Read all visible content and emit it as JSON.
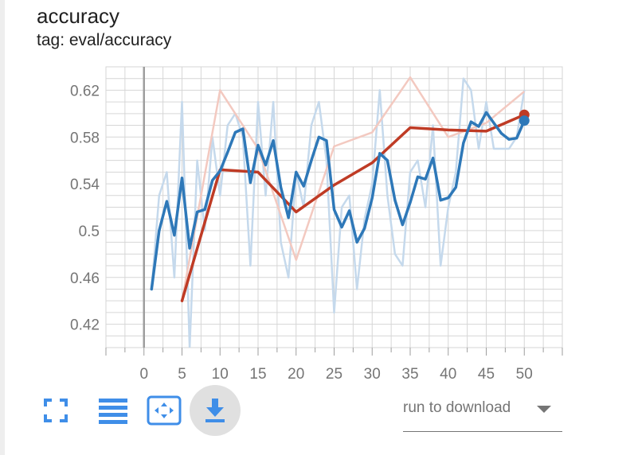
{
  "title": "accuracy",
  "subtitle": "tag: eval/accuracy",
  "toolbar": {
    "fit_icon": "fit-to-domain-icon",
    "log_icon": "toggle-y-log-icon",
    "data_icon": "toggle-selection-icon",
    "download_icon": "download-icon"
  },
  "dropdown": {
    "label": "run to download"
  },
  "colors": {
    "blue": "#2e78b8",
    "blue_light": "#c5d9ec",
    "red": "#bf3b25",
    "red_light": "#f3c9c0",
    "grid": "#d6d6d6",
    "axis": "#9e9e9e",
    "accent": "#3f8ee8"
  },
  "chart_data": {
    "type": "line",
    "title": "accuracy",
    "subtitle": "tag: eval/accuracy",
    "x_ticks": [
      0,
      5,
      10,
      15,
      20,
      25,
      30,
      35,
      40,
      45,
      50
    ],
    "y_ticks": [
      0.42,
      0.46,
      0.5,
      0.54,
      0.58,
      0.62
    ],
    "y_tick_labels": [
      "0.42",
      "0.46",
      "0.5",
      "0.54",
      "0.58",
      "0.62"
    ],
    "xlim": [
      -5,
      55
    ],
    "ylim": [
      0.4,
      0.64
    ],
    "grid": true,
    "series": [
      {
        "color": "#2e78b8",
        "raw_color": "#c5d9ec",
        "raw": [
          [
            1,
            0.45
          ],
          [
            2,
            0.53
          ],
          [
            3,
            0.55
          ],
          [
            4,
            0.46
          ],
          [
            5,
            0.61
          ],
          [
            6,
            0.4
          ],
          [
            7,
            0.56
          ],
          [
            8,
            0.5
          ],
          [
            9,
            0.58
          ],
          [
            10,
            0.53
          ],
          [
            11,
            0.59
          ],
          [
            12,
            0.6
          ],
          [
            13,
            0.58
          ],
          [
            14,
            0.47
          ],
          [
            15,
            0.61
          ],
          [
            16,
            0.53
          ],
          [
            17,
            0.61
          ],
          [
            18,
            0.49
          ],
          [
            19,
            0.46
          ],
          [
            20,
            0.55
          ],
          [
            21,
            0.52
          ],
          [
            22,
            0.59
          ],
          [
            23,
            0.61
          ],
          [
            24,
            0.56
          ],
          [
            25,
            0.43
          ],
          [
            26,
            0.52
          ],
          [
            27,
            0.53
          ],
          [
            28,
            0.45
          ],
          [
            29,
            0.51
          ],
          [
            30,
            0.54
          ],
          [
            31,
            0.62
          ],
          [
            32,
            0.53
          ],
          [
            33,
            0.48
          ],
          [
            34,
            0.47
          ],
          [
            35,
            0.55
          ],
          [
            36,
            0.56
          ],
          [
            37,
            0.52
          ],
          [
            38,
            0.59
          ],
          [
            39,
            0.47
          ],
          [
            40,
            0.52
          ],
          [
            41,
            0.55
          ],
          [
            42,
            0.63
          ],
          [
            43,
            0.62
          ],
          [
            44,
            0.57
          ],
          [
            45,
            0.61
          ],
          [
            46,
            0.57
          ],
          [
            47,
            0.57
          ],
          [
            48,
            0.57
          ],
          [
            49,
            0.58
          ],
          [
            50,
            0.62
          ]
        ],
        "smoothed": [
          [
            1,
            0.45
          ],
          [
            2,
            0.5
          ],
          [
            3,
            0.525
          ],
          [
            4,
            0.496
          ],
          [
            5,
            0.545
          ],
          [
            6,
            0.485
          ],
          [
            7,
            0.516
          ],
          [
            8,
            0.518
          ],
          [
            9,
            0.543
          ],
          [
            10,
            0.551
          ],
          [
            11,
            0.567
          ],
          [
            12,
            0.584
          ],
          [
            13,
            0.587
          ],
          [
            14,
            0.541
          ],
          [
            15,
            0.573
          ],
          [
            16,
            0.556
          ],
          [
            17,
            0.577
          ],
          [
            18,
            0.537
          ],
          [
            19,
            0.511
          ],
          [
            20,
            0.55
          ],
          [
            21,
            0.538
          ],
          [
            22,
            0.56
          ],
          [
            23,
            0.58
          ],
          [
            24,
            0.577
          ],
          [
            25,
            0.518
          ],
          [
            26,
            0.503
          ],
          [
            27,
            0.517
          ],
          [
            28,
            0.49
          ],
          [
            29,
            0.502
          ],
          [
            30,
            0.528
          ],
          [
            31,
            0.566
          ],
          [
            32,
            0.56
          ],
          [
            33,
            0.526
          ],
          [
            34,
            0.505
          ],
          [
            35,
            0.524
          ],
          [
            36,
            0.546
          ],
          [
            37,
            0.544
          ],
          [
            38,
            0.562
          ],
          [
            39,
            0.526
          ],
          [
            40,
            0.528
          ],
          [
            41,
            0.537
          ],
          [
            42,
            0.575
          ],
          [
            43,
            0.593
          ],
          [
            44,
            0.589
          ],
          [
            45,
            0.601
          ],
          [
            46,
            0.592
          ],
          [
            47,
            0.583
          ],
          [
            48,
            0.578
          ],
          [
            49,
            0.579
          ],
          [
            50,
            0.594
          ]
        ]
      },
      {
        "color": "#bf3b25",
        "raw_color": "#f3c9c0",
        "raw": [
          [
            5,
            0.44
          ],
          [
            10,
            0.62
          ],
          [
            15,
            0.57
          ],
          [
            20,
            0.475
          ],
          [
            25,
            0.572
          ],
          [
            30,
            0.584
          ],
          [
            35,
            0.631
          ],
          [
            40,
            0.58
          ],
          [
            45,
            0.592
          ],
          [
            50,
            0.619
          ]
        ],
        "smoothed": [
          [
            5,
            0.44
          ],
          [
            10,
            0.552
          ],
          [
            15,
            0.55
          ],
          [
            20,
            0.516
          ],
          [
            25,
            0.539
          ],
          [
            30,
            0.558
          ],
          [
            35,
            0.588
          ],
          [
            40,
            0.586
          ],
          [
            45,
            0.585
          ],
          [
            50,
            0.599
          ]
        ]
      }
    ]
  }
}
